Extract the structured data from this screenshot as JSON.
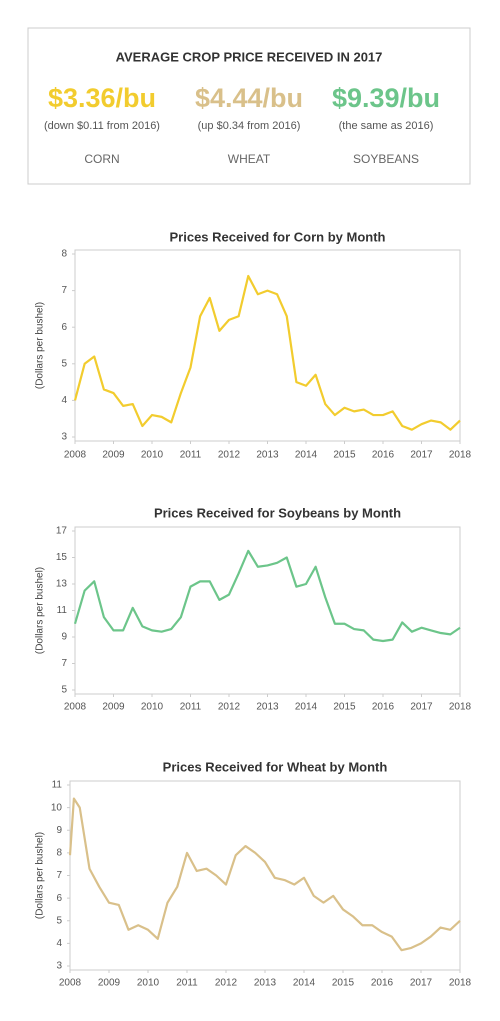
{
  "header": {
    "title": "AVERAGE CROP PRICE RECEIVED IN 2017",
    "stats": [
      {
        "price": "$3.36/bu",
        "note": "(down $0.11 from 2016)",
        "crop": "CORN",
        "color": "#f2cc2e"
      },
      {
        "price": "$4.44/bu",
        "note": "(up $0.34 from 2016)",
        "crop": "WHEAT",
        "color": "#d9c08a"
      },
      {
        "price": "$9.39/bu",
        "note": "(the same as 2016)",
        "crop": "SOYBEANS",
        "color": "#6cc58a"
      }
    ]
  },
  "chart_data": [
    {
      "type": "line",
      "title": "Prices Received for Corn by Month",
      "y_label": "(Dollars per bushel)",
      "xlim": [
        2008,
        2018
      ],
      "xticks": [
        2008,
        2009,
        2010,
        2011,
        2012,
        2013,
        2014,
        2015,
        2016,
        2017,
        2018
      ],
      "ylim": [
        3,
        8
      ],
      "yticks": [
        3,
        4,
        5,
        6,
        7,
        8
      ],
      "grid": false,
      "x": [
        2008,
        2008.25,
        2008.5,
        2008.75,
        2009,
        2009.25,
        2009.5,
        2009.75,
        2010,
        2010.25,
        2010.5,
        2010.75,
        2011,
        2011.25,
        2011.5,
        2011.75,
        2012,
        2012.25,
        2012.5,
        2012.75,
        2013,
        2013.25,
        2013.5,
        2013.75,
        2014,
        2014.25,
        2014.5,
        2014.75,
        2015,
        2015.25,
        2015.5,
        2015.75,
        2016,
        2016.25,
        2016.5,
        2016.75,
        2017,
        2017.25,
        2017.5,
        2017.75,
        2018
      ],
      "series": [
        {
          "name": "Corn",
          "color": "#f2cc2e",
          "values": [
            4.0,
            5.0,
            5.2,
            4.3,
            4.2,
            3.85,
            3.9,
            3.3,
            3.6,
            3.55,
            3.4,
            4.2,
            4.9,
            6.3,
            6.8,
            5.9,
            6.2,
            6.3,
            7.4,
            6.9,
            7.0,
            6.9,
            6.3,
            4.5,
            4.4,
            4.7,
            3.9,
            3.6,
            3.8,
            3.7,
            3.75,
            3.6,
            3.6,
            3.7,
            3.3,
            3.2,
            3.35,
            3.45,
            3.4,
            3.2,
            3.45
          ]
        }
      ]
    },
    {
      "type": "line",
      "title": "Prices Received for Soybeans by Month",
      "y_label": "(Dollars per bushel)",
      "xlim": [
        2008,
        2018
      ],
      "xticks": [
        2008,
        2009,
        2010,
        2011,
        2012,
        2013,
        2014,
        2015,
        2016,
        2017,
        2018
      ],
      "ylim": [
        5,
        17
      ],
      "yticks": [
        5,
        7,
        9,
        11,
        13,
        15,
        17
      ],
      "grid": false,
      "x": [
        2008,
        2008.25,
        2008.5,
        2008.75,
        2009,
        2009.25,
        2009.5,
        2009.75,
        2010,
        2010.25,
        2010.5,
        2010.75,
        2011,
        2011.25,
        2011.5,
        2011.75,
        2012,
        2012.25,
        2012.5,
        2012.75,
        2013,
        2013.25,
        2013.5,
        2013.75,
        2014,
        2014.25,
        2014.5,
        2014.75,
        2015,
        2015.25,
        2015.5,
        2015.75,
        2016,
        2016.25,
        2016.5,
        2016.75,
        2017,
        2017.25,
        2017.5,
        2017.75,
        2018
      ],
      "series": [
        {
          "name": "Soybeans",
          "color": "#6cc58a",
          "values": [
            10.0,
            12.5,
            13.2,
            10.5,
            9.5,
            9.5,
            11.2,
            9.8,
            9.5,
            9.4,
            9.6,
            10.5,
            12.8,
            13.2,
            13.2,
            11.8,
            12.2,
            13.8,
            15.5,
            14.3,
            14.4,
            14.6,
            15.0,
            12.8,
            13.0,
            14.3,
            12.0,
            10.0,
            10.0,
            9.6,
            9.5,
            8.8,
            8.7,
            8.8,
            10.1,
            9.4,
            9.7,
            9.5,
            9.3,
            9.2,
            9.7
          ]
        }
      ]
    },
    {
      "type": "line",
      "title": "Prices Received for Wheat by Month",
      "y_label": "(Dollars per bushel)",
      "xlim": [
        2008,
        2018
      ],
      "xticks": [
        2008,
        2009,
        2010,
        2011,
        2012,
        2013,
        2014,
        2015,
        2016,
        2017,
        2018
      ],
      "ylim": [
        3,
        11
      ],
      "yticks": [
        3,
        4,
        5,
        6,
        7,
        8,
        9,
        10,
        11
      ],
      "grid": false,
      "x": [
        2008,
        2008.1,
        2008.25,
        2008.5,
        2008.75,
        2009,
        2009.25,
        2009.5,
        2009.75,
        2010,
        2010.25,
        2010.5,
        2010.75,
        2011,
        2011.25,
        2011.5,
        2011.75,
        2012,
        2012.25,
        2012.5,
        2012.75,
        2013,
        2013.25,
        2013.5,
        2013.75,
        2014,
        2014.25,
        2014.5,
        2014.75,
        2015,
        2015.25,
        2015.5,
        2015.75,
        2016,
        2016.25,
        2016.5,
        2016.75,
        2017,
        2017.25,
        2017.5,
        2017.75,
        2018
      ],
      "series": [
        {
          "name": "Wheat",
          "color": "#d9c08a",
          "values": [
            7.9,
            10.4,
            10.0,
            7.3,
            6.5,
            5.8,
            5.7,
            4.6,
            4.8,
            4.6,
            4.2,
            5.8,
            6.5,
            8.0,
            7.2,
            7.3,
            7.0,
            6.6,
            7.9,
            8.3,
            8.0,
            7.6,
            6.9,
            6.8,
            6.6,
            6.9,
            6.1,
            5.8,
            6.1,
            5.5,
            5.2,
            4.8,
            4.8,
            4.5,
            4.3,
            3.7,
            3.8,
            4.0,
            4.3,
            4.7,
            4.6,
            5.0
          ]
        }
      ]
    }
  ]
}
